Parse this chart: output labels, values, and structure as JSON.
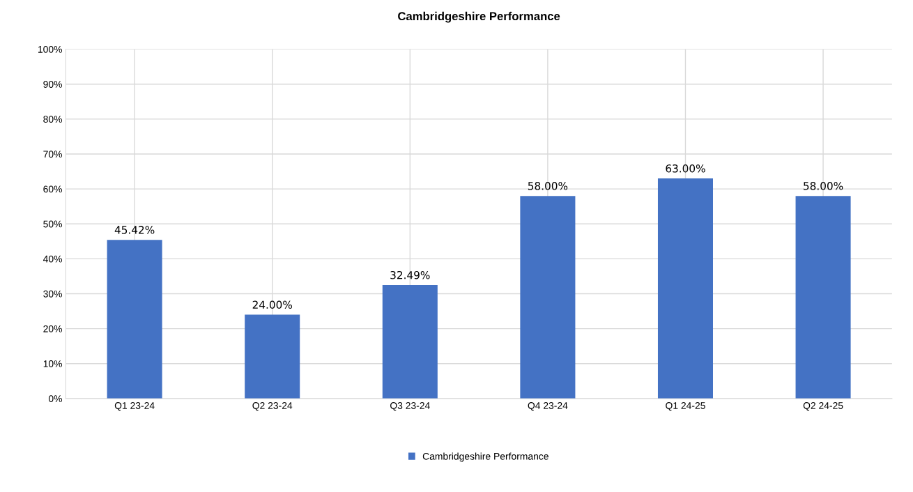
{
  "chart_data": {
    "type": "bar",
    "title": "Cambridgeshire Performance",
    "categories": [
      "Q1 23-24",
      "Q2 23-24",
      "Q3 23-24",
      "Q4 23-24",
      "Q1 24-25",
      "Q2 24-25"
    ],
    "series": [
      {
        "name": "Cambridgeshire Performance",
        "color": "#4472c4",
        "values": [
          45.42,
          24.0,
          32.49,
          58.0,
          63.0,
          58.0
        ],
        "value_labels": [
          "45.42%",
          "24.00%",
          "32.49%",
          "58.00%",
          "63.00%",
          "58.00%"
        ]
      }
    ],
    "ylim": [
      0,
      100
    ],
    "yticks": [
      {
        "value": 0,
        "label": "0%"
      },
      {
        "value": 10,
        "label": "10%"
      },
      {
        "value": 20,
        "label": "20%"
      },
      {
        "value": 30,
        "label": "30%"
      },
      {
        "value": 40,
        "label": "40%"
      },
      {
        "value": 50,
        "label": "50%"
      },
      {
        "value": 60,
        "label": "60%"
      },
      {
        "value": 70,
        "label": "70%"
      },
      {
        "value": 80,
        "label": "80%"
      },
      {
        "value": 90,
        "label": "90%"
      },
      {
        "value": 100,
        "label": "100%"
      }
    ],
    "grid": true,
    "legend": "bottom"
  }
}
